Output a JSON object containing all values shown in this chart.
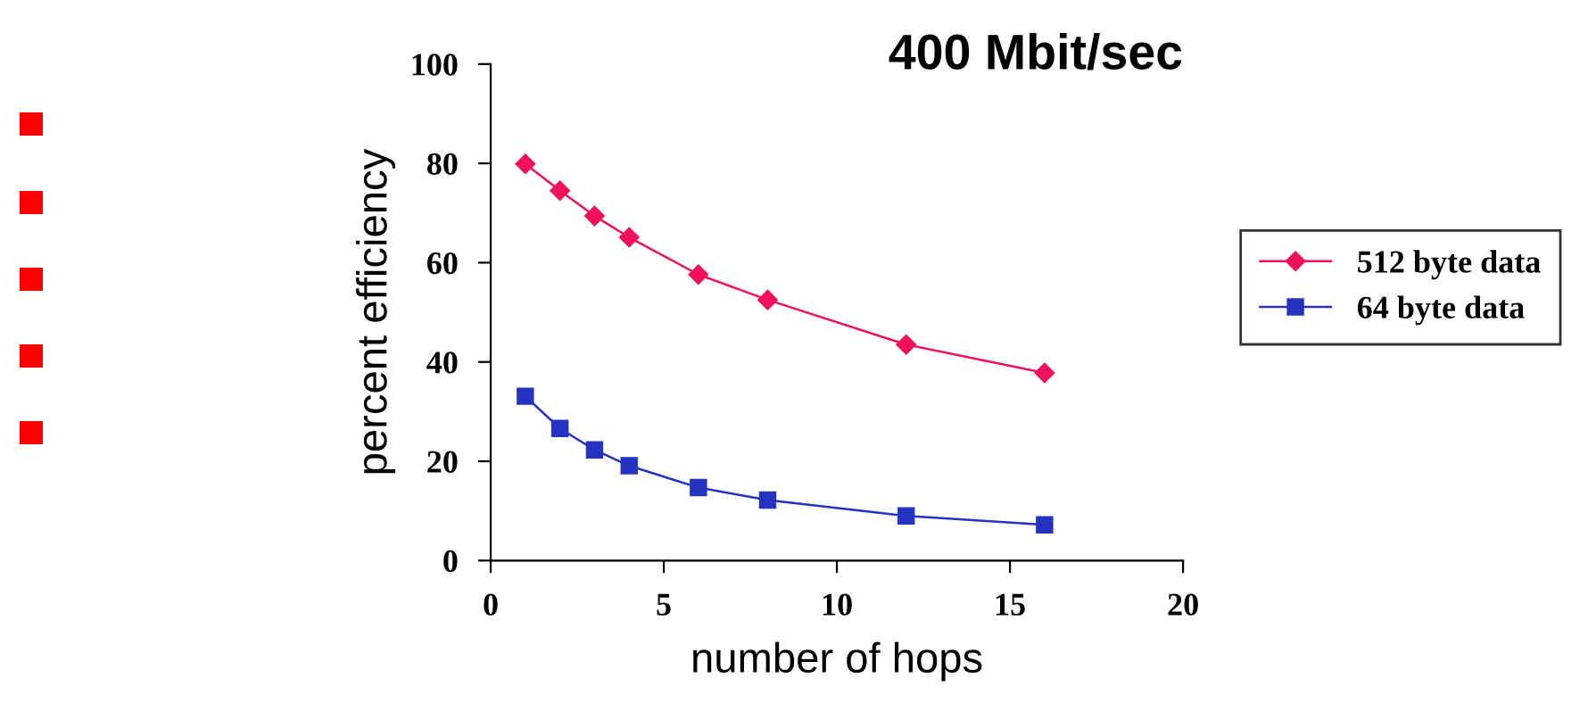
{
  "chart_data": {
    "type": "line",
    "title": "400 Mbit/sec",
    "xlabel": "number of hops",
    "ylabel": "percent efficiency",
    "xlim": [
      0,
      20
    ],
    "xticks": [
      0,
      5,
      10,
      15,
      20
    ],
    "ylim": [
      0,
      100
    ],
    "yticks": [
      0,
      20,
      40,
      60,
      80,
      100
    ],
    "grid": false,
    "legend": "right",
    "line_style": "solid",
    "series": [
      {
        "name": "512 byte data",
        "color": "#f0115a",
        "marker": "diamond",
        "x": [
          1,
          2,
          3,
          4,
          6,
          8,
          12,
          16
        ],
        "values": [
          79.9,
          74.5,
          69.4,
          65.1,
          57.6,
          52.5,
          43.5,
          37.8
        ]
      },
      {
        "name": "64 byte data",
        "color": "#2433c0",
        "marker": "square",
        "x": [
          1,
          2,
          3,
          4,
          6,
          8,
          12,
          16
        ],
        "values": [
          33.1,
          26.6,
          22.3,
          19.1,
          14.7,
          12.2,
          9.0,
          7.2
        ]
      }
    ]
  }
}
